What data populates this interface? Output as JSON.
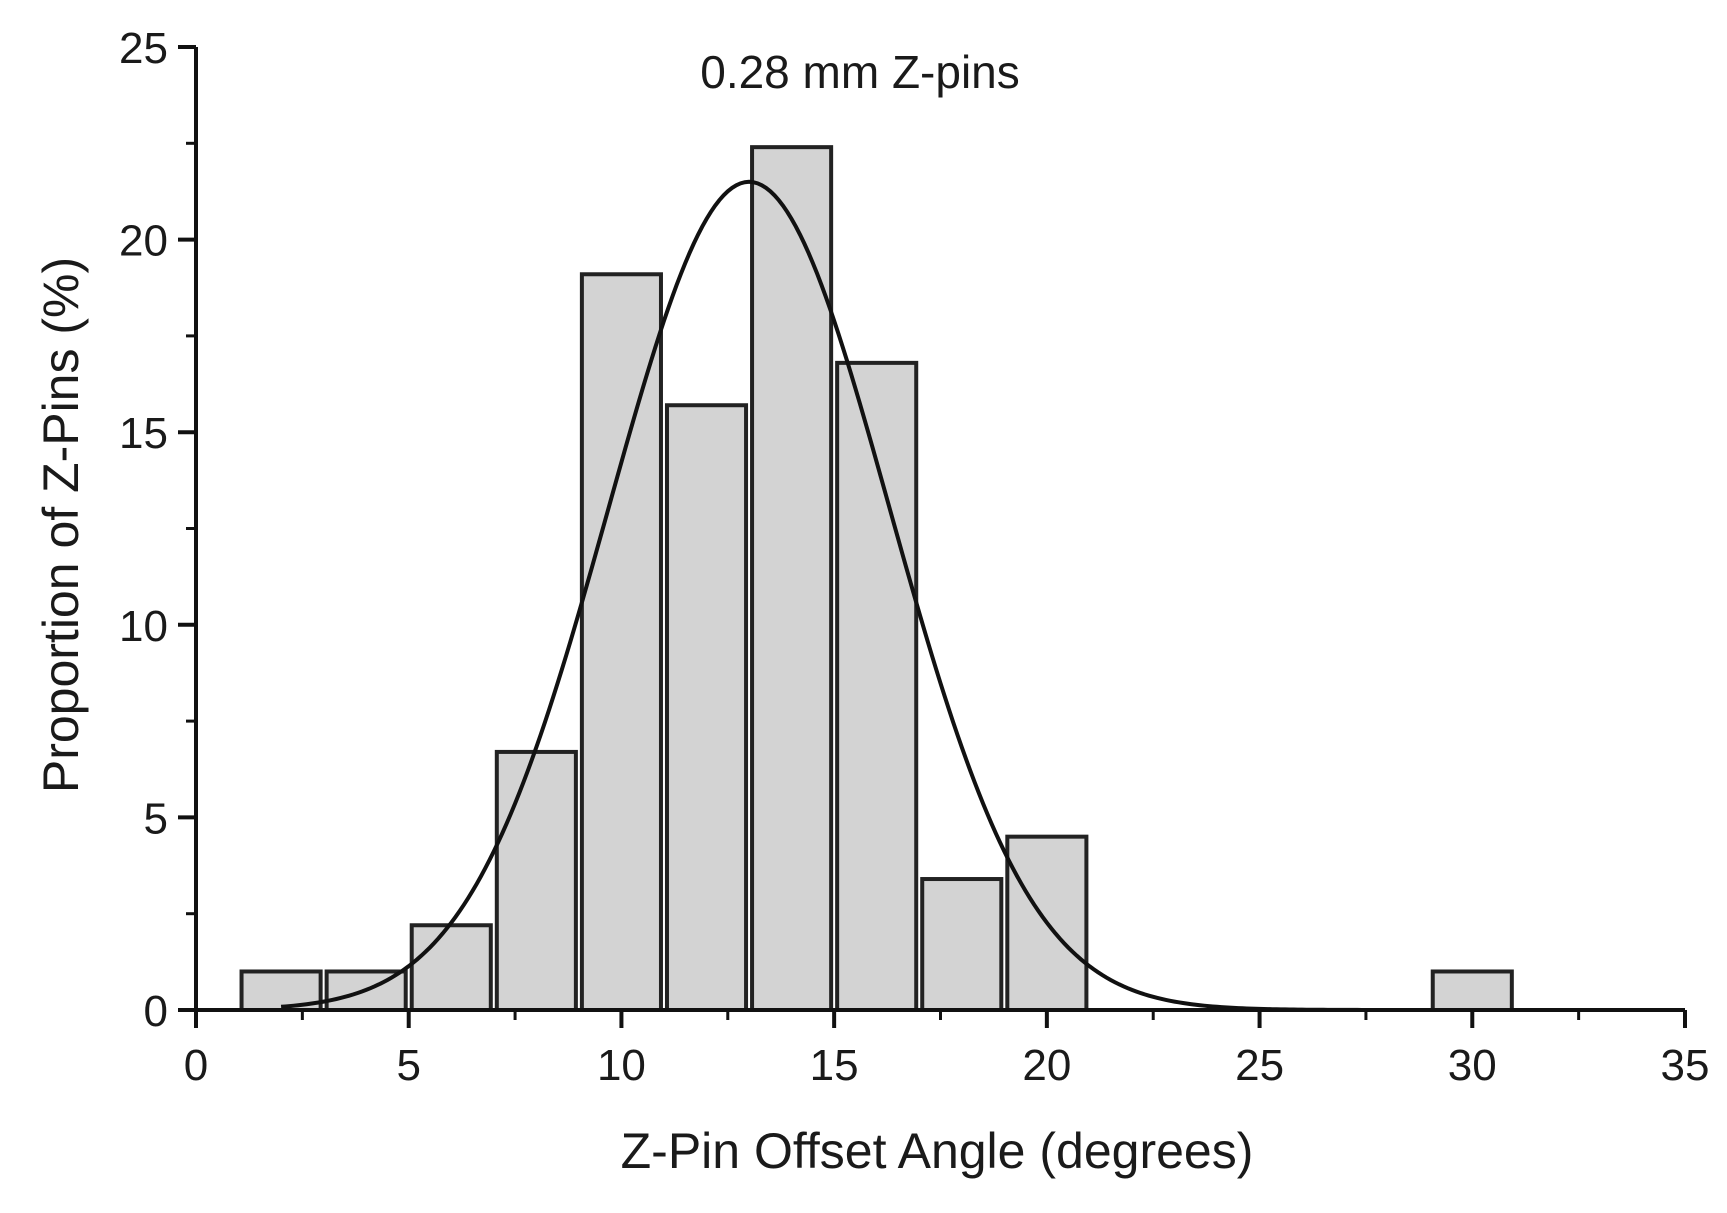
{
  "chart_data": {
    "type": "bar",
    "title": "0.28 mm Z-pins",
    "xlabel": "Z-Pin Offset Angle (degrees)",
    "ylabel": "Proportion of Z-Pins (%)",
    "xlim": [
      0,
      35
    ],
    "ylim": [
      0,
      25
    ],
    "x_ticks": [
      0,
      5,
      10,
      15,
      20,
      25,
      30,
      35
    ],
    "x_tick_labels": [
      "0",
      "5",
      "10",
      "15",
      "20",
      "25",
      "30",
      "35"
    ],
    "y_ticks": [
      0,
      5,
      10,
      15,
      20,
      25
    ],
    "y_tick_labels": [
      "0",
      "5",
      "10",
      "15",
      "20",
      "25"
    ],
    "bin_width": 2,
    "bins": [
      {
        "center": 2,
        "value": 1.0
      },
      {
        "center": 4,
        "value": 1.0
      },
      {
        "center": 6,
        "value": 2.2
      },
      {
        "center": 8,
        "value": 6.7
      },
      {
        "center": 10,
        "value": 19.1
      },
      {
        "center": 12,
        "value": 15.7
      },
      {
        "center": 14,
        "value": 22.4
      },
      {
        "center": 16,
        "value": 16.8
      },
      {
        "center": 18,
        "value": 3.4
      },
      {
        "center": 20,
        "value": 4.5
      },
      {
        "center": 30,
        "value": 1.0
      }
    ],
    "fit_curve": {
      "type": "gaussian",
      "peak_x": 13,
      "peak_y": 21.5,
      "sigma": 3.3,
      "x_range": [
        2,
        32
      ]
    },
    "grid": false,
    "colors": {
      "bar_fill": "#d3d3d3",
      "bar_stroke": "#222222",
      "curve": "#111111",
      "axis": "#111111"
    }
  }
}
